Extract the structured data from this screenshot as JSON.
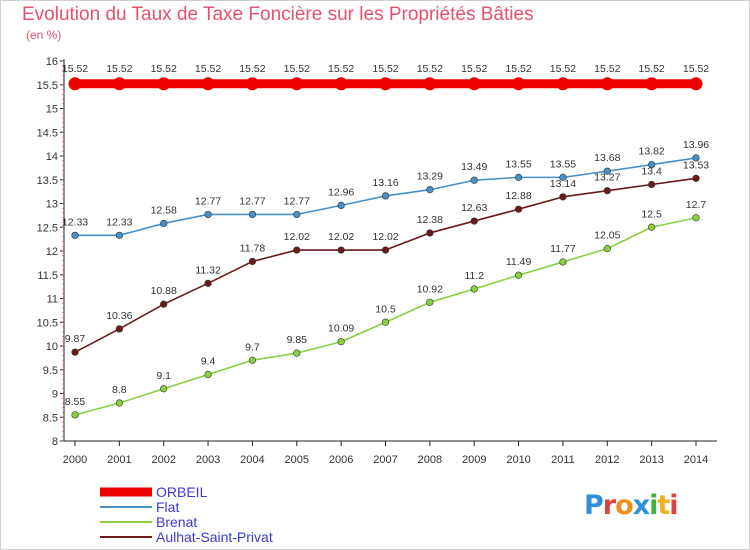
{
  "title": "Evolution du Taux de Taxe Foncière sur les Propriétés Bâties",
  "unit": "(en %)",
  "logo": "Proxiti",
  "chart_data": {
    "type": "line",
    "x": [
      2000,
      2001,
      2002,
      2003,
      2004,
      2005,
      2006,
      2007,
      2008,
      2009,
      2010,
      2011,
      2012,
      2013,
      2014
    ],
    "ylim": [
      8,
      16
    ],
    "yticks": [
      "8",
      "8.5",
      "9",
      "9.5",
      "10",
      "10.5",
      "11",
      "11.5",
      "12",
      "12.5",
      "13",
      "13.5",
      "14",
      "14.5",
      "15",
      "15.5",
      "16"
    ],
    "grid": false,
    "legend": "bottom-left",
    "series": [
      {
        "name": "ORBEIL",
        "color": "#ee0000",
        "values": [
          15.52,
          15.52,
          15.52,
          15.52,
          15.52,
          15.52,
          15.52,
          15.52,
          15.52,
          15.52,
          15.52,
          15.52,
          15.52,
          15.52,
          15.52
        ],
        "labels": [
          "15.52",
          "15.52",
          "15.52",
          "15.52",
          "15.52",
          "15.52",
          "15.52",
          "15.52",
          "15.52",
          "15.52",
          "15.52",
          "15.52",
          "15.52",
          "15.52",
          "15.52"
        ]
      },
      {
        "name": "Flat",
        "color": "#4a90c8",
        "values": [
          12.33,
          12.33,
          12.58,
          12.77,
          12.77,
          12.77,
          12.96,
          13.16,
          13.29,
          13.49,
          13.55,
          13.55,
          13.68,
          13.82,
          13.96
        ],
        "labels": [
          "12.33",
          "12.33",
          "12.58",
          "12.77",
          "12.77",
          "12.77",
          "12.96",
          "13.16",
          "13.29",
          "13.49",
          "13.55",
          "13.55",
          "13.68",
          "13.82",
          "13.96"
        ]
      },
      {
        "name": "Brenat",
        "color": "#88d040",
        "values": [
          8.55,
          8.8,
          9.1,
          9.4,
          9.7,
          9.85,
          10.09,
          10.5,
          10.92,
          11.2,
          11.49,
          11.77,
          12.05,
          12.5,
          12.7
        ],
        "labels": [
          "8.55",
          "8.8",
          "9.1",
          "9.4",
          "9.7",
          "9.85",
          "10.09",
          "10.5",
          "10.92",
          "11.2",
          "11.49",
          "11.77",
          "12.05",
          "12.5",
          "12.7"
        ]
      },
      {
        "name": "Aulhat-Saint-Privat",
        "color": "#6b1a1a",
        "values": [
          9.87,
          10.36,
          10.88,
          11.32,
          11.78,
          12.02,
          12.02,
          12.02,
          12.38,
          12.63,
          12.88,
          13.14,
          13.27,
          13.4,
          13.53
        ],
        "labels": [
          "9.87",
          "10.36",
          "10.88",
          "11.32",
          "11.78",
          "12.02",
          "12.02",
          "12.02",
          "12.38",
          "12.63",
          "12.88",
          "13.14",
          "13.27",
          "13.4",
          "13.53"
        ]
      }
    ]
  }
}
